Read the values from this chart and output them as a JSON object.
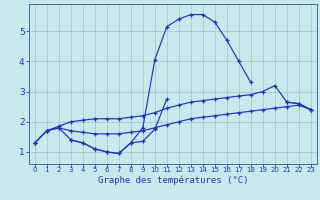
{
  "xlabel": "Graphe des températures (°C)",
  "background_color": "#c8e8ec",
  "grid_color": "#a8c8cc",
  "line_color": "#2233bb",
  "hours": [
    0,
    1,
    2,
    3,
    4,
    5,
    6,
    7,
    8,
    9,
    10,
    11,
    12,
    13,
    14,
    15,
    16,
    17,
    18,
    19,
    20,
    21,
    22,
    23
  ],
  "line_peak": [
    1.3,
    1.7,
    1.8,
    1.4,
    1.3,
    1.1,
    1.0,
    0.95,
    1.3,
    1.8,
    4.05,
    5.15,
    5.4,
    5.55,
    5.55,
    5.3,
    4.7,
    4.0,
    3.3,
    null,
    null,
    2.65,
    2.6,
    2.4
  ],
  "line_dip": [
    null,
    null,
    null,
    1.4,
    1.3,
    1.1,
    1.0,
    0.95,
    1.3,
    1.35,
    1.75,
    2.75,
    null,
    null,
    null,
    null,
    null,
    null,
    null,
    null,
    null,
    null,
    null,
    null
  ],
  "line_upper": [
    1.3,
    1.7,
    1.85,
    2.0,
    2.05,
    2.1,
    2.1,
    2.1,
    2.15,
    2.2,
    2.3,
    2.45,
    2.55,
    2.65,
    2.7,
    2.75,
    2.8,
    2.85,
    2.9,
    3.0,
    3.2,
    2.65,
    2.6,
    2.4
  ],
  "line_lower": [
    1.3,
    1.7,
    1.8,
    1.7,
    1.65,
    1.6,
    1.6,
    1.6,
    1.65,
    1.7,
    1.8,
    1.9,
    2.0,
    2.1,
    2.15,
    2.2,
    2.25,
    2.3,
    2.35,
    2.4,
    2.45,
    2.5,
    2.55,
    2.4
  ],
  "ylim": [
    0.6,
    5.9
  ],
  "xlim": [
    -0.5,
    23.5
  ],
  "yticks": [
    1,
    2,
    3,
    4,
    5
  ],
  "xticks": [
    0,
    1,
    2,
    3,
    4,
    5,
    6,
    7,
    8,
    9,
    10,
    11,
    12,
    13,
    14,
    15,
    16,
    17,
    18,
    19,
    20,
    21,
    22,
    23
  ]
}
